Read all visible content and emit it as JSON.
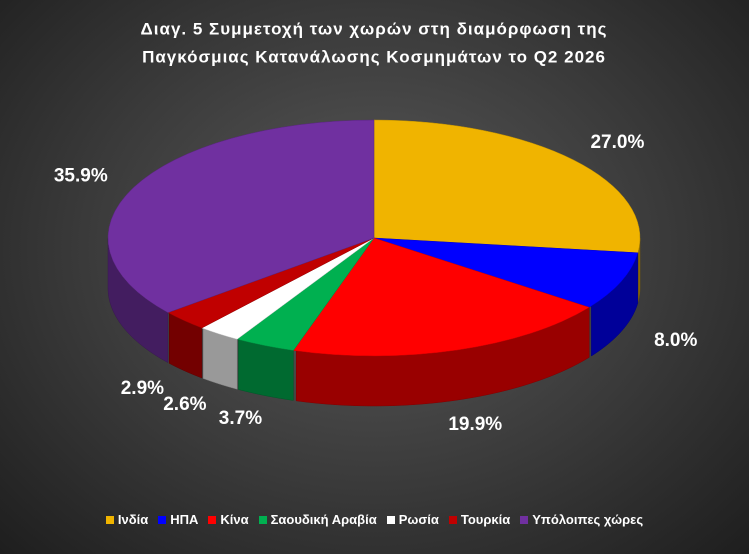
{
  "chart_data": {
    "type": "pie3d",
    "title": [
      "Διαγ. 5  Συμμετοχή των χωρών στη διαμόρφωση της",
      "Παγκόσμιας Κατανάλωσης Κοσμημάτων το Q2 2026"
    ],
    "categories": [
      "Ινδία",
      "ΗΠΑ",
      "Κίνα",
      "Σαουδική Αραβία",
      "Ρωσία",
      "Τουρκία",
      "Υπόλοιπες χώρες"
    ],
    "values": [
      27.0,
      8.0,
      19.9,
      3.7,
      2.6,
      2.9,
      35.9
    ],
    "value_labels": [
      "27.0%",
      "8.0%",
      "19.9%",
      "3.7%",
      "2.6%",
      "2.9%",
      "35.9%"
    ],
    "colors": [
      "#f0b400",
      "#0000ff",
      "#ff0000",
      "#00b050",
      "#ffffff",
      "#c00000",
      "#7030a0"
    ],
    "legend": "bottom"
  }
}
